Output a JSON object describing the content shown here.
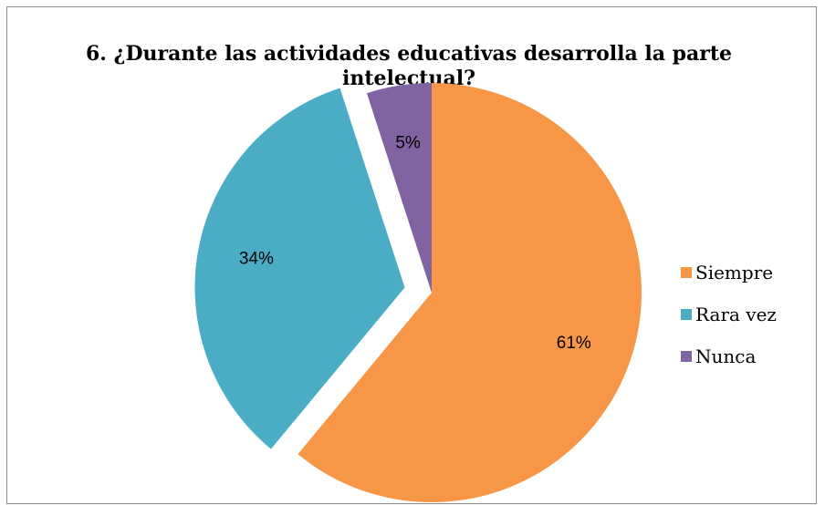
{
  "chart_data": {
    "type": "pie",
    "title": "6. ¿Durante las actividades educativas desarrolla la parte intelectual?",
    "categories": [
      "Siempre",
      "Rara vez",
      "Nunca"
    ],
    "values": [
      61,
      34,
      5
    ],
    "labels": [
      "61%",
      "34%",
      "5%"
    ],
    "colors": [
      "#F79646",
      "#4BACC6",
      "#8064A2"
    ],
    "exploded": [
      false,
      true,
      false
    ],
    "legend_position": "right"
  }
}
